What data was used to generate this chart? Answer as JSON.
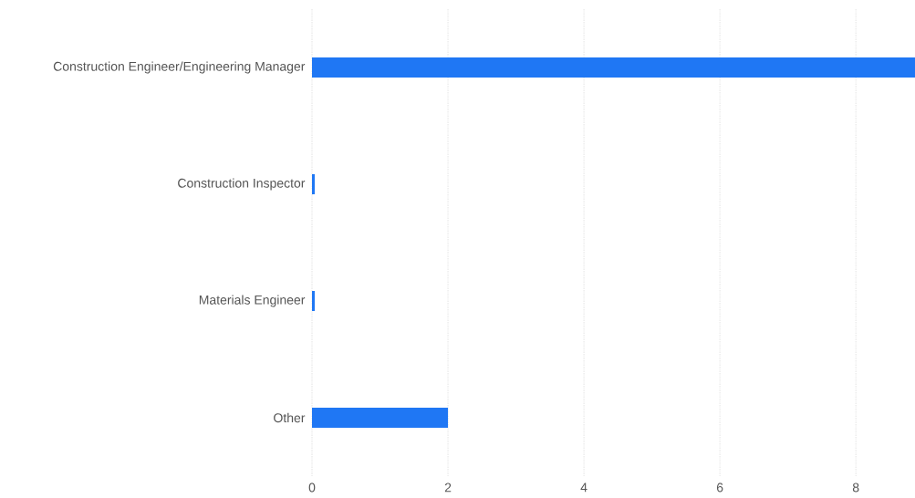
{
  "chart_data": {
    "type": "bar",
    "orientation": "horizontal",
    "categories": [
      "Construction Engineer/Engineering Manager",
      "Construction Inspector",
      "Materials Engineer",
      "Other"
    ],
    "values": [
      8.87,
      0.04,
      0.04,
      2
    ],
    "color": "#1f77f4",
    "xlim": [
      0,
      8.87
    ],
    "xticks": [
      0,
      2,
      4,
      6,
      8
    ],
    "grid": "x"
  }
}
